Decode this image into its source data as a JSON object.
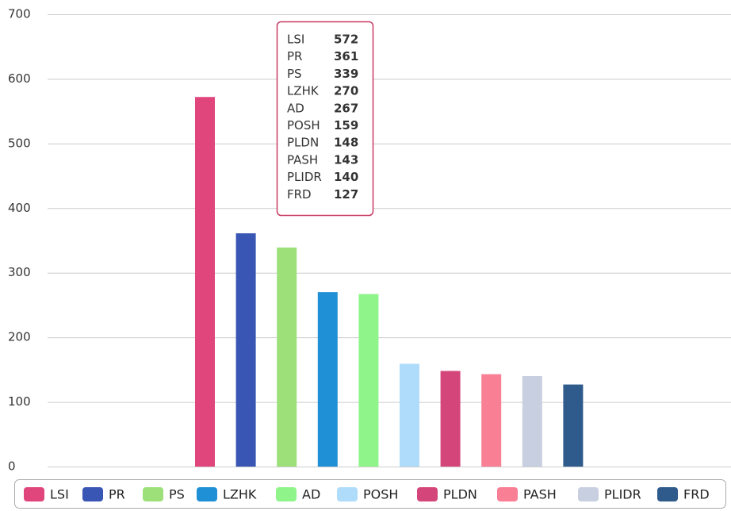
{
  "chart_data": {
    "type": "bar",
    "series": [
      {
        "name": "LSI",
        "color": "#e0457b",
        "values": [
          572
        ]
      },
      {
        "name": "PR",
        "color": "#3a56b4",
        "values": [
          361
        ]
      },
      {
        "name": "PS",
        "color": "#9de07a",
        "values": [
          339
        ]
      },
      {
        "name": "LZHK",
        "color": "#1f8fd6",
        "values": [
          270
        ]
      },
      {
        "name": "AD",
        "color": "#8ff58a",
        "values": [
          267
        ]
      },
      {
        "name": "POSH",
        "color": "#afdcfa",
        "values": [
          159
        ]
      },
      {
        "name": "PLDN",
        "color": "#d4467a",
        "values": [
          148
        ]
      },
      {
        "name": "PASH",
        "color": "#f97f95",
        "values": [
          143
        ]
      },
      {
        "name": "PLIDR",
        "color": "#c8cfe0",
        "values": [
          140
        ]
      },
      {
        "name": "FRD",
        "color": "#2e5b8c",
        "values": [
          127
        ]
      }
    ],
    "ylim": [
      0,
      700
    ],
    "yticks": [
      0,
      100,
      200,
      300,
      400,
      500,
      600,
      700
    ],
    "grid": true,
    "legend": "bottom"
  }
}
